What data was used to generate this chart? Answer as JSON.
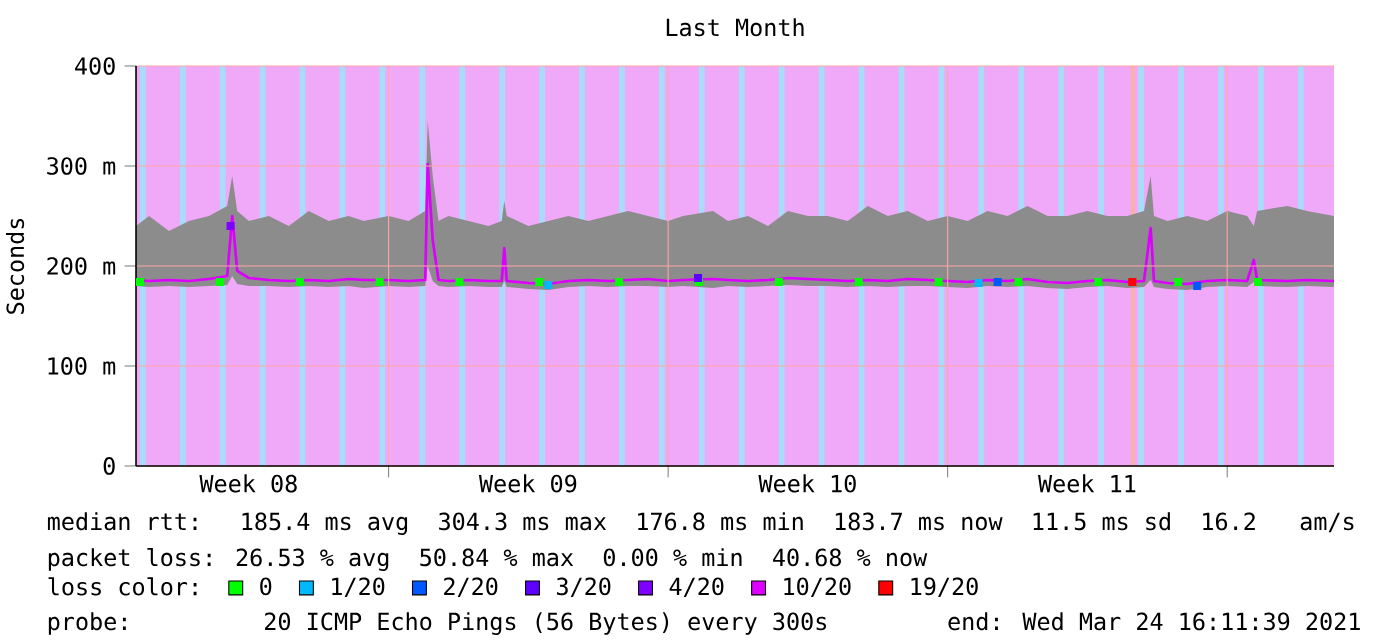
{
  "chart_data": {
    "type": "line",
    "title": "Last Month",
    "ylabel": "Seconds",
    "xlim": [
      "2021-02-22T16:11",
      "2021-03-24T16:11"
    ],
    "xticks": [
      {
        "value": "2021-03-01T00:00",
        "label": null
      },
      {
        "value": "2021-03-08T00:00",
        "label": null
      },
      {
        "value": "2021-03-15T00:00",
        "label": null
      },
      {
        "value": "2021-03-22T00:00",
        "label": null
      },
      {
        "value": "2021-02-25T12:00",
        "label": "Week 08"
      },
      {
        "value": "2021-03-04T12:00",
        "label": "Week 09"
      },
      {
        "value": "2021-03-11T12:00",
        "label": "Week 10"
      },
      {
        "value": "2021-03-18T12:00",
        "label": "Week 11"
      }
    ],
    "ylim": [
      0,
      400
    ],
    "yticks": [
      0,
      {
        "value": 100,
        "label": "100 m"
      },
      {
        "value": 200,
        "label": "200 m"
      },
      {
        "value": 300,
        "label": "300 m"
      },
      400
    ],
    "grid": true,
    "legend": "bottom",
    "legend_title": "loss color:",
    "annotations": [
      "median rtt:  185.4 ms avg  304.3 ms max  176.8 ms min  183.7 ms now  11.5 ms sd  16.2   am/s",
      "packet loss: 26.53 % avg  50.84 % max  0.00 % min  40.68 % now",
      "probe:       20 ICMP Echo Pings (56 Bytes) every 300s",
      "end: Wed Mar 24 16:11:39 2021"
    ],
    "bands": [
      {
        "axis": "x",
        "from": "2021-02-22T16:11",
        "to": "2021-03-24T16:11",
        "color": "#f0a8f8"
      },
      {
        "axis": "x",
        "from": "2021-02-22T18:30",
        "to": "2021-02-22T22:00",
        "color": "#a8dcf8"
      },
      {
        "axis": "x",
        "from": "2021-02-23T18:30",
        "to": "2021-02-23T22:00",
        "color": "#a8dcf8"
      },
      {
        "axis": "x",
        "from": "2021-02-24T18:30",
        "to": "2021-02-24T22:00",
        "color": "#a8dcf8"
      },
      {
        "axis": "x",
        "from": "2021-02-25T18:30",
        "to": "2021-02-25T22:00",
        "color": "#a8dcf8"
      },
      {
        "axis": "x",
        "from": "2021-02-26T18:30",
        "to": "2021-02-26T22:00",
        "color": "#a8dcf8"
      },
      {
        "axis": "x",
        "from": "2021-02-27T18:30",
        "to": "2021-02-27T22:00",
        "color": "#a8dcf8"
      },
      {
        "axis": "x",
        "from": "2021-02-28T18:30",
        "to": "2021-02-28T22:00",
        "color": "#a8dcf8"
      },
      {
        "axis": "x",
        "from": "2021-03-01T18:30",
        "to": "2021-03-01T22:00",
        "color": "#a8dcf8"
      },
      {
        "axis": "x",
        "from": "2021-03-02T18:30",
        "to": "2021-03-02T22:00",
        "color": "#a8dcf8"
      },
      {
        "axis": "x",
        "from": "2021-03-03T18:30",
        "to": "2021-03-03T22:00",
        "color": "#a8dcf8"
      },
      {
        "axis": "x",
        "from": "2021-03-04T18:30",
        "to": "2021-03-04T22:00",
        "color": "#a8dcf8"
      },
      {
        "axis": "x",
        "from": "2021-03-05T18:30",
        "to": "2021-03-05T22:00",
        "color": "#a8dcf8"
      },
      {
        "axis": "x",
        "from": "2021-03-06T18:30",
        "to": "2021-03-06T22:00",
        "color": "#a8dcf8"
      },
      {
        "axis": "x",
        "from": "2021-03-07T18:30",
        "to": "2021-03-07T22:00",
        "color": "#a8dcf8"
      },
      {
        "axis": "x",
        "from": "2021-03-08T18:30",
        "to": "2021-03-08T22:00",
        "color": "#a8dcf8"
      },
      {
        "axis": "x",
        "from": "2021-03-09T18:30",
        "to": "2021-03-09T22:00",
        "color": "#a8dcf8"
      },
      {
        "axis": "x",
        "from": "2021-03-10T18:30",
        "to": "2021-03-10T22:00",
        "color": "#a8dcf8"
      },
      {
        "axis": "x",
        "from": "2021-03-11T18:30",
        "to": "2021-03-11T22:00",
        "color": "#a8dcf8"
      },
      {
        "axis": "x",
        "from": "2021-03-12T18:30",
        "to": "2021-03-12T22:00",
        "color": "#a8dcf8"
      },
      {
        "axis": "x",
        "from": "2021-03-13T18:30",
        "to": "2021-03-13T22:00",
        "color": "#a8dcf8"
      },
      {
        "axis": "x",
        "from": "2021-03-14T18:30",
        "to": "2021-03-14T22:00",
        "color": "#a8dcf8"
      },
      {
        "axis": "x",
        "from": "2021-03-15T18:30",
        "to": "2021-03-15T22:00",
        "color": "#a8dcf8"
      },
      {
        "axis": "x",
        "from": "2021-03-16T18:30",
        "to": "2021-03-16T22:00",
        "color": "#a8dcf8"
      },
      {
        "axis": "x",
        "from": "2021-03-17T18:30",
        "to": "2021-03-17T22:00",
        "color": "#a8dcf8"
      },
      {
        "axis": "x",
        "from": "2021-03-18T18:30",
        "to": "2021-03-18T22:00",
        "color": "#a8dcf8"
      },
      {
        "axis": "x",
        "from": "2021-03-19T14:00",
        "to": "2021-03-19T16:30",
        "color": "#f8b0a8"
      },
      {
        "axis": "x",
        "from": "2021-03-19T18:30",
        "to": "2021-03-19T22:00",
        "color": "#a8dcf8"
      },
      {
        "axis": "x",
        "from": "2021-03-20T18:30",
        "to": "2021-03-20T22:00",
        "color": "#a8dcf8"
      },
      {
        "axis": "x",
        "from": "2021-03-21T18:30",
        "to": "2021-03-21T22:00",
        "color": "#a8dcf8"
      },
      {
        "axis": "x",
        "from": "2021-03-22T18:30",
        "to": "2021-03-22T22:00",
        "color": "#a8dcf8"
      },
      {
        "axis": "x",
        "from": "2021-03-23T18:30",
        "to": "2021-03-23T22:00",
        "color": "#a8dcf8"
      }
    ],
    "series": [
      {
        "name": "0",
        "type": "scatter",
        "marker": "square",
        "color": "#00ff00",
        "x": [
          "2021-02-22T18:35",
          "2021-02-24T18:35",
          "2021-02-26T18:35",
          "2021-02-28T18:35",
          "2021-03-02T18:35",
          "2021-03-04T18:35",
          "2021-03-06T18:35",
          "2021-03-08T18:35",
          "2021-03-10T18:35",
          "2021-03-12T18:35",
          "2021-03-14T18:35",
          "2021-03-16T18:35",
          "2021-03-18T18:35",
          "2021-03-20T18:35",
          "2021-03-22T18:35"
        ],
        "values": [
          184,
          184,
          184,
          184,
          184,
          184,
          184,
          184,
          184,
          184,
          184,
          184,
          184,
          184,
          184
        ]
      },
      {
        "name": "1/20",
        "type": "scatter",
        "marker": "square",
        "color": "#00b8ff",
        "x": [
          "2021-03-05T00:00",
          "2021-03-15T18:35"
        ],
        "values": [
          181,
          183
        ]
      },
      {
        "name": "2/20",
        "type": "scatter",
        "marker": "square",
        "color": "#0059ff",
        "x": [
          "2021-03-16T06:00",
          "2021-03-21T06:00"
        ],
        "values": [
          184,
          180
        ]
      },
      {
        "name": "3/20",
        "type": "scatter",
        "marker": "square",
        "color": "#5e00ff",
        "x": [
          "2021-03-08T18:00"
        ],
        "values": [
          188
        ]
      },
      {
        "name": "4/20",
        "type": "scatter",
        "marker": "square",
        "color": "#7e00ff",
        "x": [
          "2021-02-25T01:00"
        ],
        "values": [
          240
        ]
      },
      {
        "name": "10/20",
        "color": "#dd00ff",
        "x": [
          "2021-02-22T16:11",
          "2021-02-23T00:00",
          "2021-02-23T12:00",
          "2021-02-24T00:00",
          "2021-02-24T12:00",
          "2021-02-24T23:00",
          "2021-02-25T02:00",
          "2021-02-25T05:00",
          "2021-02-25T12:00",
          "2021-02-26T00:00",
          "2021-02-26T12:00",
          "2021-02-27T00:00",
          "2021-02-27T12:00",
          "2021-02-28T00:00",
          "2021-02-28T09:00",
          "2021-03-01T00:00",
          "2021-03-01T12:00",
          "2021-03-01T22:00",
          "2021-03-01T23:30",
          "2021-03-02T02:30",
          "2021-03-02T06:00",
          "2021-03-02T12:00",
          "2021-03-03T00:00",
          "2021-03-03T12:00",
          "2021-03-03T20:00",
          "2021-03-03T21:30",
          "2021-03-03T23:00",
          "2021-03-04T12:00",
          "2021-03-05T00:00",
          "2021-03-05T12:00",
          "2021-03-06T00:00",
          "2021-03-06T12:00",
          "2021-03-07T00:00",
          "2021-03-07T12:00",
          "2021-03-08T00:00",
          "2021-03-08T09:00",
          "2021-03-09T03:00",
          "2021-03-09T12:00",
          "2021-03-10T00:00",
          "2021-03-10T12:00",
          "2021-03-11T00:00",
          "2021-03-11T12:00",
          "2021-03-12T00:00",
          "2021-03-12T12:00",
          "2021-03-13T00:00",
          "2021-03-13T12:00",
          "2021-03-14T00:00",
          "2021-03-14T12:00",
          "2021-03-15T00:00",
          "2021-03-15T12:00",
          "2021-03-16T00:00",
          "2021-03-16T12:00",
          "2021-03-17T00:00",
          "2021-03-17T12:00",
          "2021-03-18T00:00",
          "2021-03-18T12:00",
          "2021-03-19T00:00",
          "2021-03-19T12:00",
          "2021-03-19T22:00",
          "2021-03-20T02:00",
          "2021-03-20T04:00",
          "2021-03-20T12:00",
          "2021-03-21T00:00",
          "2021-03-21T12:00",
          "2021-03-22T00:00",
          "2021-03-22T12:00",
          "2021-03-22T16:00",
          "2021-03-22T18:00",
          "2021-03-23T12:00",
          "2021-03-24T00:00",
          "2021-03-24T16:11"
        ],
        "values": [
          186,
          185,
          186,
          185,
          187,
          190,
          250,
          195,
          188,
          186,
          185,
          186,
          185,
          187,
          186,
          186,
          185,
          186,
          302,
          226,
          186,
          185,
          186,
          185,
          185,
          218,
          185,
          183,
          182,
          185,
          186,
          185,
          186,
          187,
          185,
          186,
          187,
          186,
          185,
          186,
          188,
          187,
          186,
          185,
          186,
          185,
          187,
          186,
          185,
          184,
          186,
          185,
          187,
          184,
          183,
          185,
          186,
          184,
          185,
          238,
          185,
          183,
          182,
          185,
          186,
          185,
          206,
          186,
          185,
          186,
          185
        ],
        "lower": [
          180,
          179,
          180,
          179,
          180,
          181,
          190,
          182,
          180,
          180,
          179,
          180,
          179,
          180,
          178,
          180,
          179,
          180,
          200,
          185,
          180,
          179,
          180,
          179,
          179,
          185,
          179,
          177,
          176,
          179,
          180,
          179,
          180,
          180,
          179,
          180,
          178,
          180,
          179,
          180,
          181,
          180,
          180,
          179,
          180,
          179,
          180,
          180,
          179,
          178,
          180,
          179,
          180,
          178,
          177,
          179,
          180,
          178,
          179,
          186,
          179,
          177,
          176,
          179,
          180,
          179,
          184,
          180,
          179,
          180,
          179
        ],
        "upper": [
          240,
          250,
          235,
          245,
          250,
          260,
          290,
          255,
          245,
          250,
          240,
          255,
          245,
          250,
          245,
          250,
          245,
          255,
          345,
          290,
          245,
          250,
          245,
          240,
          245,
          265,
          250,
          240,
          245,
          250,
          245,
          250,
          255,
          250,
          245,
          250,
          255,
          245,
          250,
          240,
          255,
          250,
          250,
          245,
          260,
          250,
          255,
          245,
          250,
          245,
          255,
          250,
          260,
          250,
          250,
          255,
          250,
          250,
          255,
          290,
          250,
          245,
          250,
          245,
          255,
          250,
          240,
          255,
          260,
          255,
          250
        ]
      },
      {
        "name": "19/20",
        "type": "scatter",
        "marker": "square",
        "color": "#ff0000",
        "x": [
          "2021-03-19T15:00"
        ],
        "values": [
          184
        ]
      }
    ]
  }
}
